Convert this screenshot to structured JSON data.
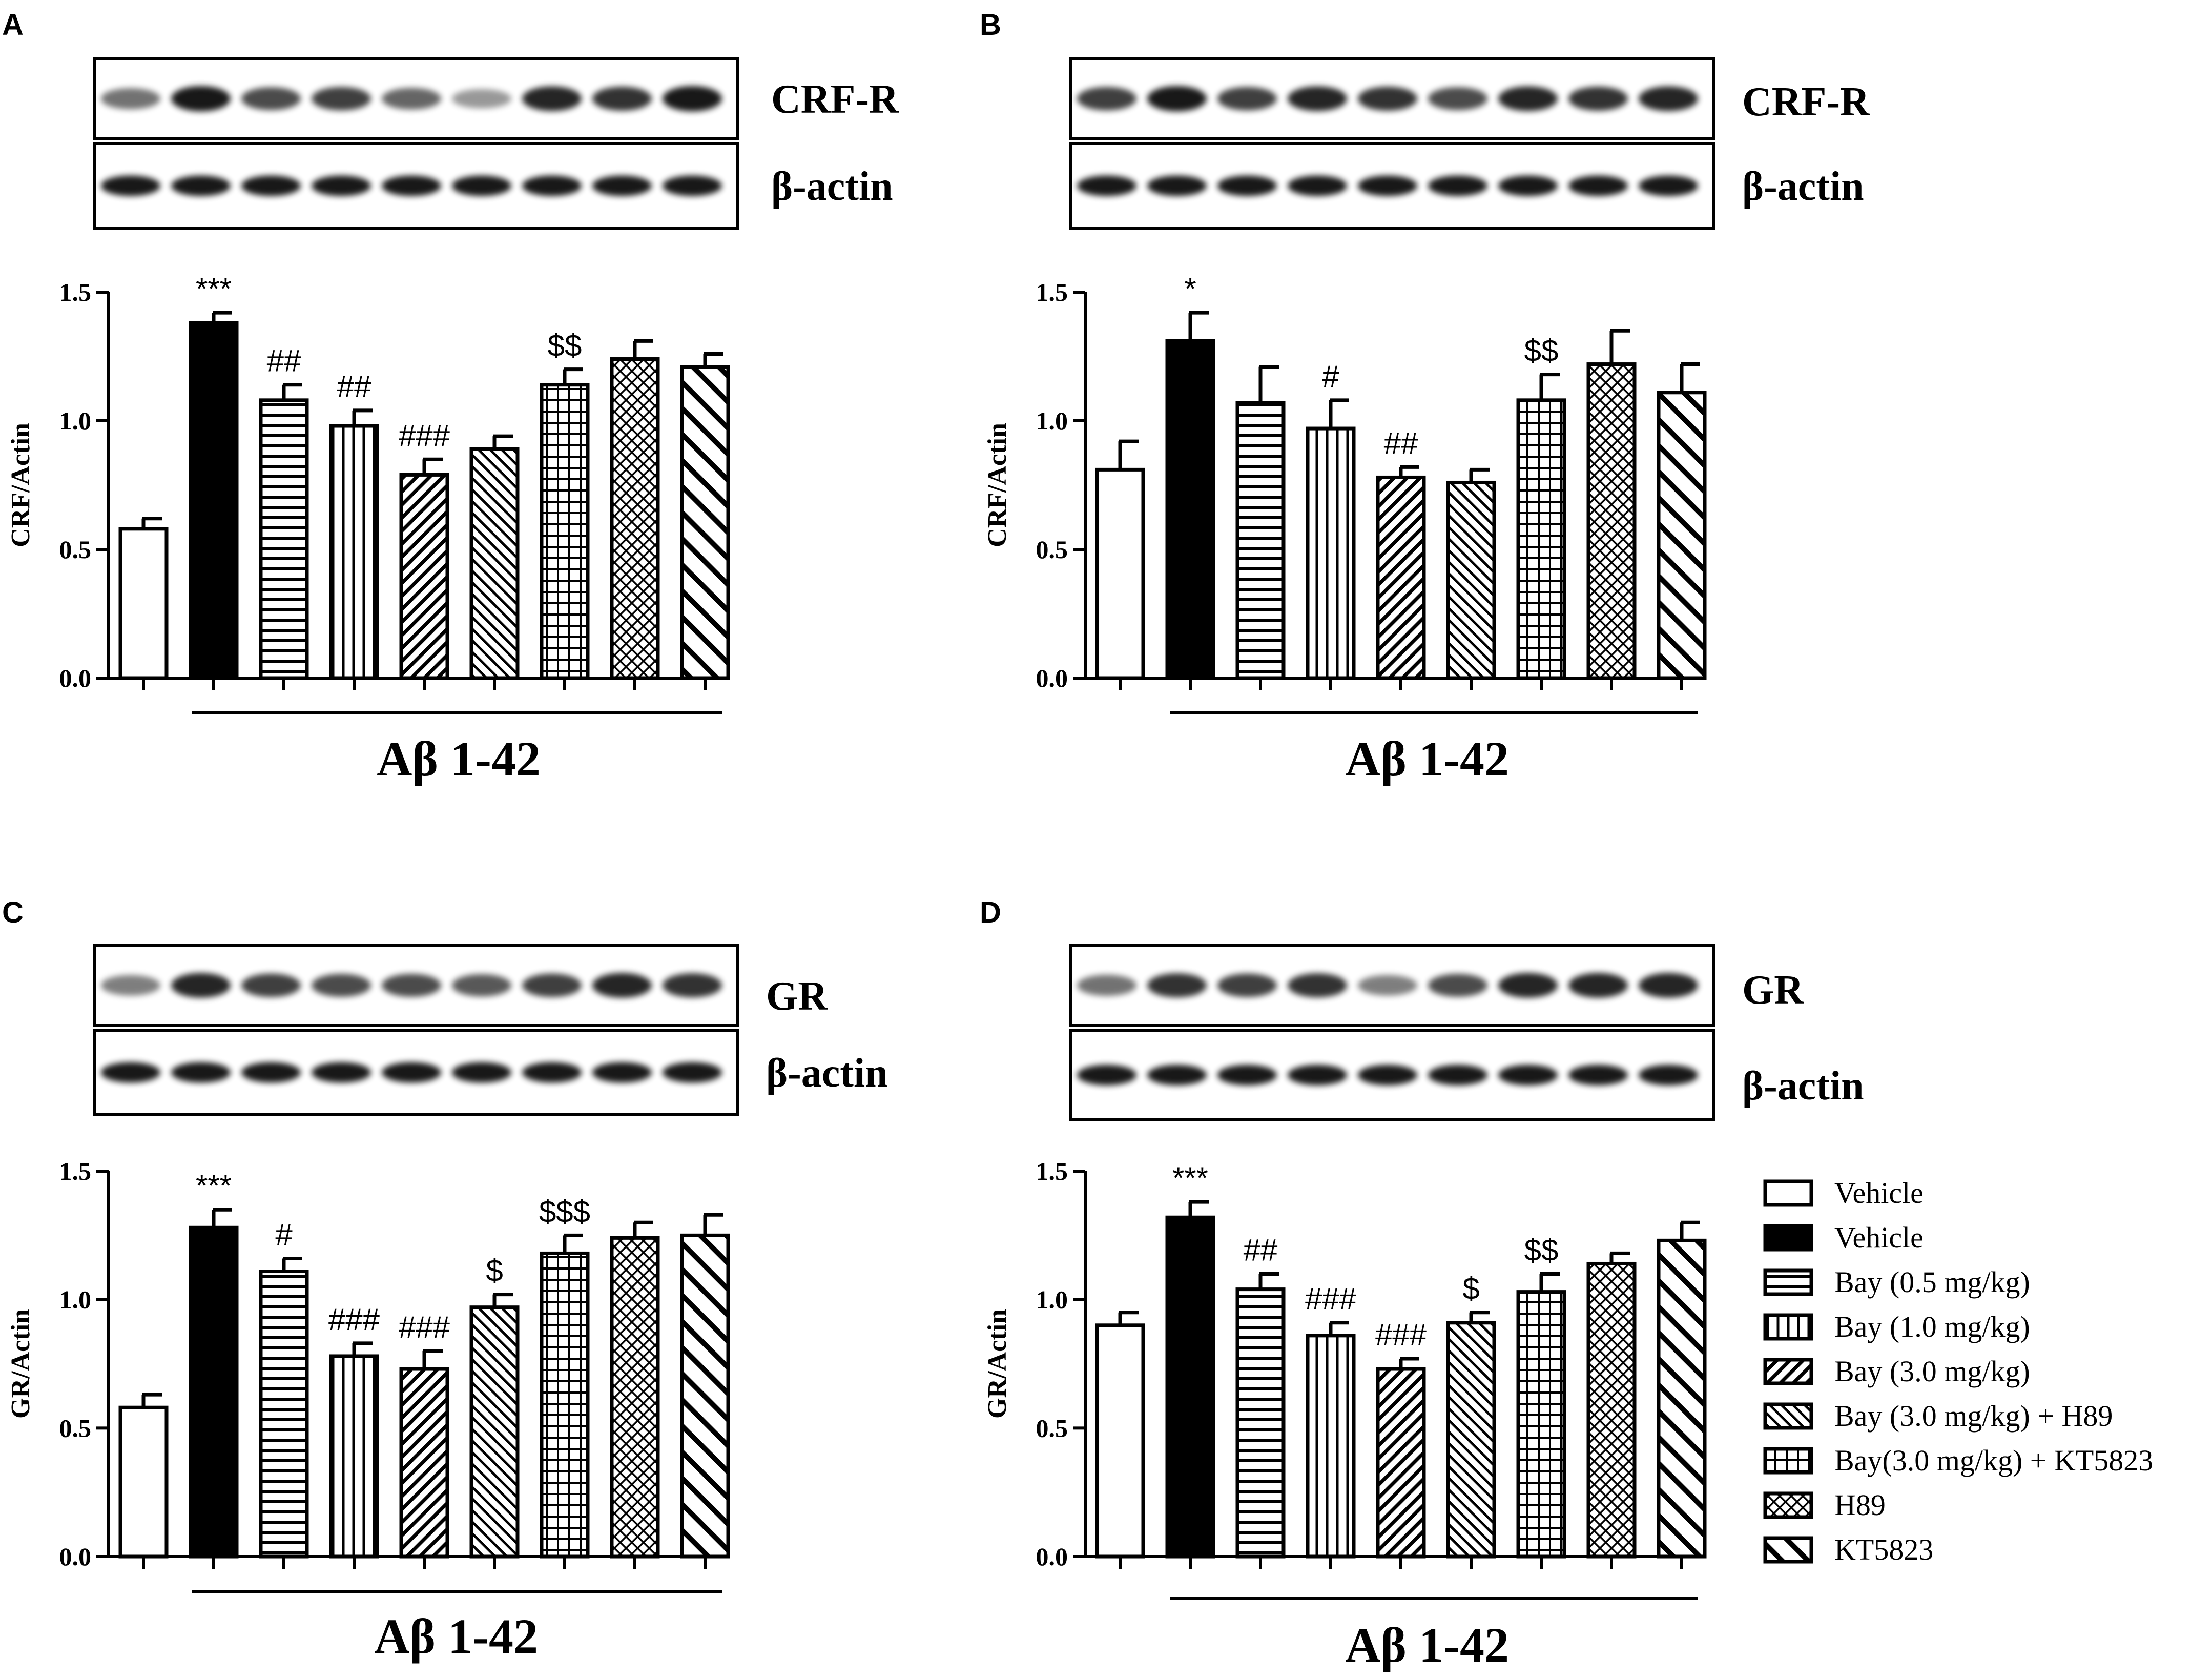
{
  "panel_letters": [
    "A",
    "B",
    "C",
    "D"
  ],
  "legend": {
    "items": [
      {
        "label": "Vehicle",
        "pattern": "empty"
      },
      {
        "label": "Vehicle",
        "pattern": "solid"
      },
      {
        "label": "Bay (0.5 mg/kg)",
        "pattern": "hlines"
      },
      {
        "label": "Bay (1.0 mg/kg)",
        "pattern": "vlines"
      },
      {
        "label": "Bay (3.0 mg/kg)",
        "pattern": "diag-up"
      },
      {
        "label": "Bay (3.0 mg/kg) + H89",
        "pattern": "diag-down"
      },
      {
        "label": "Bay(3.0 mg/kg) + KT5823",
        "pattern": "grid"
      },
      {
        "label": "H89",
        "pattern": "crosshatch"
      },
      {
        "label": "KT5823",
        "pattern": "diag-down-wide"
      }
    ]
  },
  "chart_data": [
    {
      "panel": "A",
      "type": "bar",
      "blot_labels": [
        "CRF-R",
        "β-actin"
      ],
      "ylabel": "CRF/Actin",
      "ylim": [
        0,
        1.5
      ],
      "yticks": [
        "0.0",
        "0.5",
        "1.0",
        "1.5"
      ],
      "group_label": "Aβ 1-42",
      "values": [
        0.58,
        1.38,
        1.08,
        0.98,
        0.79,
        0.89,
        1.14,
        1.24,
        1.21
      ],
      "errors": [
        0.04,
        0.04,
        0.06,
        0.06,
        0.06,
        0.05,
        0.06,
        0.07,
        0.05
      ],
      "annotations": [
        "",
        "***",
        "##",
        "##",
        "###",
        "",
        "$$",
        "",
        ""
      ]
    },
    {
      "panel": "B",
      "type": "bar",
      "blot_labels": [
        "CRF-R",
        "β-actin"
      ],
      "ylabel": "CRF/Actin",
      "ylim": [
        0,
        1.5
      ],
      "yticks": [
        "0.0",
        "0.5",
        "1.0",
        "1.5"
      ],
      "group_label": "Aβ 1-42",
      "values": [
        0.81,
        1.31,
        1.07,
        0.97,
        0.78,
        0.76,
        1.08,
        1.22,
        1.11
      ],
      "errors": [
        0.11,
        0.11,
        0.14,
        0.11,
        0.04,
        0.05,
        0.1,
        0.13,
        0.11
      ],
      "annotations": [
        "",
        "*",
        "",
        "#",
        "##",
        "",
        "$$",
        "",
        ""
      ]
    },
    {
      "panel": "C",
      "type": "bar",
      "blot_labels": [
        "GR",
        "β-actin"
      ],
      "ylabel": "GR/Actin",
      "ylim": [
        0,
        1.5
      ],
      "yticks": [
        "0.0",
        "0.5",
        "1.0",
        "1.5"
      ],
      "group_label": "Aβ 1-42",
      "values": [
        0.58,
        1.28,
        1.11,
        0.78,
        0.73,
        0.97,
        1.18,
        1.24,
        1.25
      ],
      "errors": [
        0.05,
        0.07,
        0.05,
        0.05,
        0.07,
        0.05,
        0.07,
        0.06,
        0.08
      ],
      "annotations": [
        "",
        "***",
        "#",
        "###",
        "###",
        "$",
        "$$$",
        "",
        ""
      ]
    },
    {
      "panel": "D",
      "type": "bar",
      "blot_labels": [
        "GR",
        "β-actin"
      ],
      "ylabel": "GR/Actin",
      "ylim": [
        0,
        1.5
      ],
      "yticks": [
        "0.0",
        "0.5",
        "1.0",
        "1.5"
      ],
      "group_label": "Aβ 1-42",
      "values": [
        0.9,
        1.32,
        1.04,
        0.86,
        0.73,
        0.91,
        1.03,
        1.14,
        1.23
      ],
      "errors": [
        0.05,
        0.06,
        0.06,
        0.05,
        0.04,
        0.04,
        0.07,
        0.04,
        0.07
      ],
      "annotations": [
        "",
        "***",
        "##",
        "###",
        "###",
        "$",
        "$$",
        "",
        ""
      ]
    }
  ]
}
